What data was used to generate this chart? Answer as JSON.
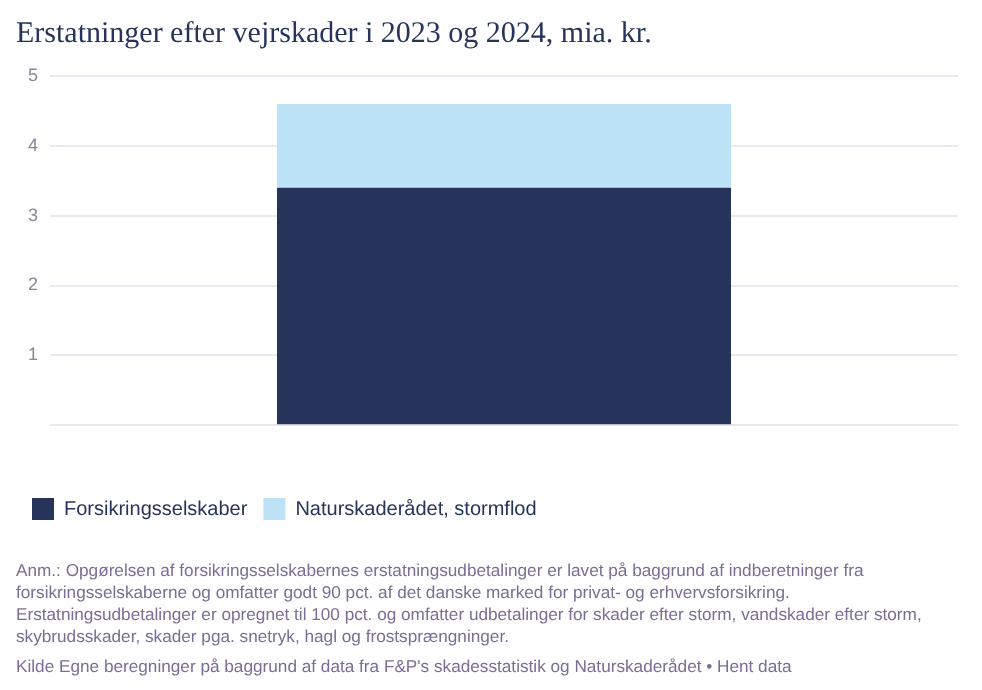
{
  "chart_data": {
    "type": "bar",
    "title": "Erstatninger efter vejrskader i 2023 og 2024, mia. kr.",
    "categories": [
      null
    ],
    "series": [
      {
        "name": "Forsikringsselskaber",
        "color": "#26345c",
        "values": [
          3.4
        ]
      },
      {
        "name": "Naturskaderådet, stormflod",
        "color": "#bde3f6",
        "values": [
          1.2
        ]
      }
    ],
    "stacked": true,
    "ylim": [
      0,
      5
    ],
    "yticks": [
      {
        "value": 0,
        "label": null
      },
      1,
      2,
      3,
      4,
      5
    ],
    "grid": "y",
    "legend": "bottom left",
    "annotations": [
      "Anm.: Opgørelsen af forsikringsselskabernes erstatningsudbetalinger er lavet på baggrund af indberetninger fra forsikringsselskaberne og omfatter godt 90 pct. af det danske marked for privat- og erhvervsforsikring. Erstatningsudbetalinger er opregnet til 100 pct. og omfatter udbetalinger for skader efter storm, vandskader efter storm, skybrudsskader, skader pga. snetryk, hagl og frostsprængninger.",
      "Kilde Egne beregninger på baggrund af data fra F&P's skadesstatistik og Naturskaderådet • Hent data"
    ]
  }
}
